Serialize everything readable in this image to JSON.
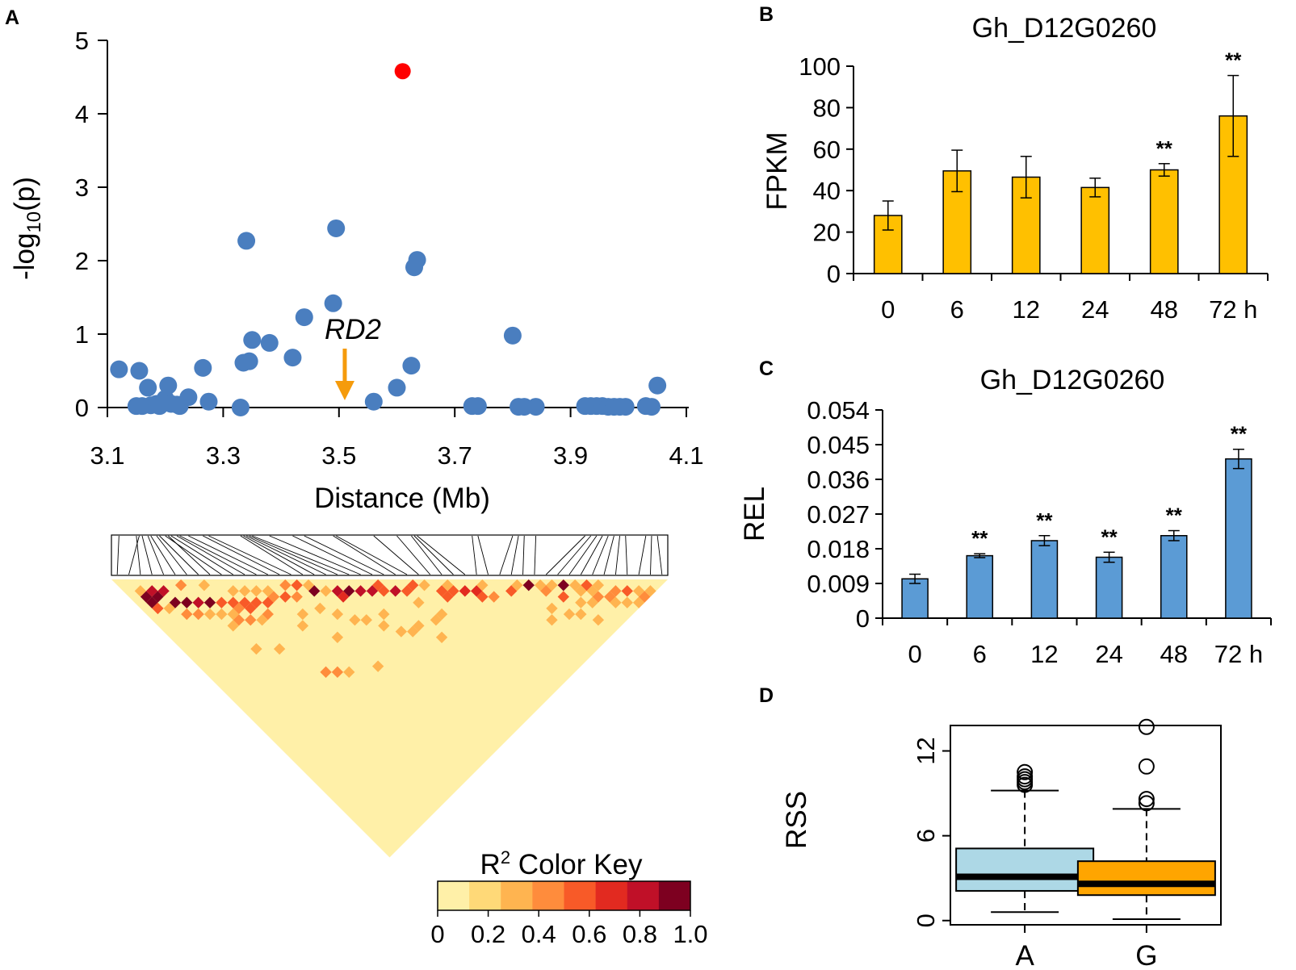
{
  "colors": {
    "scatter_point": "#4a7ebf",
    "highlight_point": "#ff0000",
    "arrow": "#f59b0c",
    "bar_b": "#ffc000",
    "bar_c": "#5b9bd5",
    "box_a": "#add8e6",
    "box_g": "#ffa500",
    "ld_scale": [
      "#fff0a8",
      "#ffd978",
      "#ffb450",
      "#ff8c3c",
      "#f85a28",
      "#e22a20",
      "#c01028",
      "#7d0020"
    ]
  },
  "panels": {
    "a": {
      "label": "A"
    },
    "b": {
      "label": "B"
    },
    "c": {
      "label": "C"
    },
    "d": {
      "label": "D"
    }
  },
  "chart_data": [
    {
      "id": "A-manhattan",
      "type": "scatter",
      "xlabel": "Distance (Mb)",
      "ylabel_base": "-log",
      "ylabel_sub": "10",
      "ylabel_end": "(p)",
      "xlim": [
        3.1,
        4.1
      ],
      "ylim": [
        0,
        5
      ],
      "xticks": [
        "3.1",
        "3.3",
        "3.5",
        "3.7",
        "3.9",
        "4.1"
      ],
      "yticks": [
        "0",
        "1",
        "2",
        "3",
        "4",
        "5"
      ],
      "annotation": {
        "text": "RD2",
        "x": 3.51
      },
      "highlight": {
        "x": 3.61,
        "y": 4.58
      },
      "points": [
        [
          3.12,
          0.52
        ],
        [
          3.155,
          0.5
        ],
        [
          3.15,
          0.02
        ],
        [
          3.16,
          0.02
        ],
        [
          3.17,
          0.27
        ],
        [
          3.175,
          0.03
        ],
        [
          3.185,
          0.05
        ],
        [
          3.19,
          0.02
        ],
        [
          3.205,
          0.3
        ],
        [
          3.2,
          0.12
        ],
        [
          3.21,
          0.05
        ],
        [
          3.22,
          0.04
        ],
        [
          3.225,
          0.02
        ],
        [
          3.24,
          0.14
        ],
        [
          3.265,
          0.54
        ],
        [
          3.275,
          0.08
        ],
        [
          3.33,
          0.0
        ],
        [
          3.335,
          0.61
        ],
        [
          3.34,
          2.27
        ],
        [
          3.345,
          0.63
        ],
        [
          3.35,
          0.92
        ],
        [
          3.38,
          0.88
        ],
        [
          3.42,
          0.68
        ],
        [
          3.44,
          1.23
        ],
        [
          3.49,
          1.42
        ],
        [
          3.495,
          2.44
        ],
        [
          3.56,
          0.08
        ],
        [
          3.6,
          0.27
        ],
        [
          3.625,
          0.57
        ],
        [
          3.63,
          1.91
        ],
        [
          3.635,
          2.01
        ],
        [
          3.73,
          0.02
        ],
        [
          3.74,
          0.02
        ],
        [
          3.8,
          0.98
        ],
        [
          3.81,
          0.01
        ],
        [
          3.82,
          0.01
        ],
        [
          3.84,
          0.01
        ],
        [
          3.925,
          0.02
        ],
        [
          3.935,
          0.02
        ],
        [
          3.945,
          0.02
        ],
        [
          3.955,
          0.02
        ],
        [
          3.965,
          0.01
        ],
        [
          3.975,
          0.01
        ],
        [
          3.985,
          0.01
        ],
        [
          3.995,
          0.01
        ],
        [
          4.03,
          0.02
        ],
        [
          4.04,
          0.01
        ],
        [
          4.05,
          0.3
        ]
      ]
    },
    {
      "id": "A-ld",
      "type": "heatmap",
      "colorkey_title": "R",
      "colorkey_sup": "2",
      "colorkey_title_end": " Color Key",
      "colorkey_ticks": [
        "0",
        "0.2",
        "0.4",
        "0.6",
        "0.8",
        "1.0"
      ],
      "snp_count": 48,
      "cells": [
        [
          1,
          4,
          0.9
        ],
        [
          1,
          5,
          0.95
        ],
        [
          2,
          4,
          0.85
        ],
        [
          2,
          5,
          0.9
        ],
        [
          3,
          5,
          0.8
        ],
        [
          1,
          6,
          0.5
        ],
        [
          3,
          7,
          0.9
        ],
        [
          4,
          8,
          0.9
        ],
        [
          5,
          9,
          0.8
        ],
        [
          6,
          10,
          0.95
        ],
        [
          7,
          11,
          0.5
        ],
        [
          8,
          12,
          0.5
        ],
        [
          9,
          13,
          0.5
        ],
        [
          8,
          13,
          0.45
        ],
        [
          9,
          14,
          0.5
        ],
        [
          10,
          14,
          0.55
        ],
        [
          11,
          15,
          0.5
        ],
        [
          7,
          14,
          0.4
        ],
        [
          8,
          15,
          0.45
        ],
        [
          6,
          14,
          0.35
        ],
        [
          10,
          16,
          0.45
        ],
        [
          12,
          15,
          0.45
        ],
        [
          14,
          17,
          0.4
        ],
        [
          16,
          18,
          0.9
        ],
        [
          11,
          13,
          0.35
        ],
        [
          9,
          11,
          0.35
        ],
        [
          12,
          14,
          0.3
        ],
        [
          10,
          12,
          0.3
        ],
        [
          5,
          6,
          0.4
        ],
        [
          7,
          8,
          0.3
        ],
        [
          14,
          15,
          0.4
        ],
        [
          15,
          16,
          0.5
        ],
        [
          13,
          16,
          0.55
        ],
        [
          16,
          17,
          0.35
        ],
        [
          17,
          19,
          0.35
        ],
        [
          18,
          20,
          0.85
        ],
        [
          19,
          21,
          0.9
        ],
        [
          20,
          22,
          0.85
        ],
        [
          21,
          23,
          0.85
        ],
        [
          22,
          23,
          0.5
        ],
        [
          18,
          21,
          0.7
        ],
        [
          22,
          24,
          0.6
        ],
        [
          23,
          25,
          0.8
        ],
        [
          24,
          26,
          0.6
        ],
        [
          25,
          26,
          0.5
        ],
        [
          26,
          27,
          0.3
        ],
        [
          27,
          29,
          0.5
        ],
        [
          28,
          30,
          0.5
        ],
        [
          27,
          30,
          0.6
        ],
        [
          29,
          31,
          0.65
        ],
        [
          30,
          32,
          0.7
        ],
        [
          28,
          29,
          0.35
        ],
        [
          31,
          32,
          0.35
        ],
        [
          24,
          28,
          0.25
        ],
        [
          20,
          26,
          0.3
        ],
        [
          22,
          30,
          0.3
        ],
        [
          25,
          31,
          0.35
        ],
        [
          30,
          33,
          0.55
        ],
        [
          31,
          34,
          0.45
        ],
        [
          33,
          35,
          0.5
        ],
        [
          34,
          35,
          0.35
        ],
        [
          35,
          36,
          0.9
        ],
        [
          36,
          37,
          0.3
        ],
        [
          37,
          38,
          0.35
        ],
        [
          38,
          39,
          0.9
        ],
        [
          39,
          40,
          0.35
        ],
        [
          40,
          41,
          0.5
        ],
        [
          41,
          42,
          0.35
        ],
        [
          40,
          43,
          0.4
        ],
        [
          42,
          44,
          0.4
        ],
        [
          43,
          45,
          0.5
        ],
        [
          44,
          46,
          0.35
        ],
        [
          38,
          42,
          0.35
        ],
        [
          39,
          43,
          0.35
        ],
        [
          41,
          44,
          0.4
        ],
        [
          36,
          38,
          0.45
        ],
        [
          37,
          40,
          0.5
        ],
        [
          42,
          46,
          0.25
        ],
        [
          43,
          47,
          0.3
        ],
        [
          41,
          45,
          0.3
        ],
        [
          44,
          47,
          0.45
        ],
        [
          45,
          47,
          0.35
        ],
        [
          40,
          42,
          0.3
        ],
        [
          39,
          41,
          0.25
        ],
        [
          1,
          3,
          0.3
        ],
        [
          2,
          7,
          0.25
        ],
        [
          5,
          11,
          0.3
        ],
        [
          4,
          10,
          0.45
        ],
        [
          3,
          9,
          0.4
        ],
        [
          6,
          12,
          0.3
        ],
        [
          7,
          13,
          0.35
        ],
        [
          9,
          16,
          0.3
        ],
        [
          13,
          19,
          0.3
        ],
        [
          15,
          20,
          0.3
        ],
        [
          18,
          25,
          0.25
        ],
        [
          19,
          27,
          0.25
        ],
        [
          20,
          29,
          0.3
        ],
        [
          21,
          30,
          0.35
        ],
        [
          23,
          33,
          0.3
        ],
        [
          24,
          31,
          0.25
        ],
        [
          35,
          40,
          0.25
        ],
        [
          36,
          42,
          0.3
        ],
        [
          37,
          43,
          0.35
        ],
        [
          38,
          45,
          0.3
        ],
        [
          34,
          41,
          0.25
        ],
        [
          15,
          30,
          0.3
        ],
        [
          10,
          26,
          0.45
        ],
        [
          11,
          27,
          0.4
        ],
        [
          12,
          28,
          0.35
        ],
        [
          14,
          24,
          0.3
        ],
        [
          6,
          18,
          0.25
        ],
        [
          8,
          20,
          0.3
        ],
        [
          12,
          20,
          0.3
        ],
        [
          16,
          22,
          0.3
        ],
        [
          17,
          24,
          0.25
        ]
      ]
    },
    {
      "id": "B",
      "type": "bar",
      "title": "Gh_D12G0260",
      "ylabel": "FPKM",
      "ylim": [
        0,
        100
      ],
      "yticks": [
        "0",
        "20",
        "40",
        "60",
        "80",
        "100"
      ],
      "categories": [
        "0",
        "6",
        "12",
        "24",
        "48",
        "72 h"
      ],
      "values": [
        28,
        49.5,
        46.5,
        41.5,
        50,
        76
      ],
      "errors": [
        7,
        10,
        10,
        4.5,
        3,
        19.5
      ],
      "significance": [
        "",
        "",
        "",
        "",
        "**",
        "**"
      ]
    },
    {
      "id": "C",
      "type": "bar",
      "title": "Gh_D12G0260",
      "ylabel": "REL",
      "ylim": [
        0,
        0.054
      ],
      "yticks": [
        "0",
        "0.009",
        "0.018",
        "0.027",
        "0.036",
        "0.045",
        "0.054"
      ],
      "categories": [
        "0",
        "6",
        "12",
        "24",
        "48",
        "72 h"
      ],
      "values": [
        0.0102,
        0.0162,
        0.0201,
        0.0158,
        0.0214,
        0.0413
      ],
      "errors": [
        0.0012,
        0.0005,
        0.0013,
        0.0013,
        0.0013,
        0.0025
      ],
      "significance": [
        "",
        "**",
        "**",
        "**",
        "**",
        "**"
      ]
    },
    {
      "id": "D",
      "type": "box",
      "ylabel": "RSS",
      "ylim": [
        -0.3,
        13.8
      ],
      "yticks": [
        "0",
        "6",
        "12"
      ],
      "tick_values": [
        0,
        6,
        12
      ],
      "categories": [
        "A",
        "G"
      ],
      "boxes": [
        {
          "whisker_low": 0.6,
          "q1": 2.1,
          "median": 3.1,
          "q3": 5.1,
          "whisker_high": 9.2,
          "outliers": [
            9.6,
            9.8,
            10.0,
            10.2,
            10.5
          ]
        },
        {
          "whisker_low": 0.1,
          "q1": 1.8,
          "median": 2.6,
          "q3": 4.2,
          "whisker_high": 7.9,
          "outliers": [
            8.3,
            8.6,
            10.9,
            13.7
          ]
        }
      ]
    }
  ]
}
